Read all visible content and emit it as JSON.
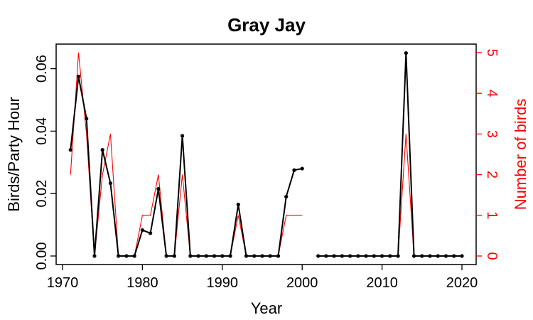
{
  "chart_data": {
    "type": "line",
    "title": "Gray Jay",
    "xlabel": "Year",
    "ylabel": "Birds/Party Hour",
    "y2label": "Number of birds",
    "xlim": [
      1970,
      2020
    ],
    "ylim": [
      0,
      0.065
    ],
    "y2lim": [
      0,
      5
    ],
    "x_ticks": [
      1970,
      1980,
      1990,
      2000,
      2010,
      2020
    ],
    "y_ticks": [
      "0.00",
      "0.02",
      "0.04",
      "0.06"
    ],
    "y2_ticks": [
      "0",
      "1",
      "2",
      "3",
      "4",
      "5"
    ],
    "colors": {
      "primary": "#000000",
      "secondary": "#ff0000"
    },
    "x": [
      1971,
      1972,
      1973,
      1974,
      1975,
      1976,
      1977,
      1978,
      1979,
      1980,
      1981,
      1982,
      1983,
      1984,
      1985,
      1986,
      1987,
      1988,
      1989,
      1990,
      1991,
      1992,
      1993,
      1994,
      1995,
      1996,
      1997,
      1998,
      1999,
      2000,
      2001,
      2002,
      2003,
      2004,
      2005,
      2006,
      2007,
      2008,
      2009,
      2010,
      2011,
      2012,
      2013,
      2014,
      2015,
      2016,
      2017,
      2018,
      2019,
      2020
    ],
    "series": [
      {
        "axis": "left",
        "values": [
          0.034,
          0.0575,
          0.044,
          0,
          0.034,
          0.0233,
          0,
          0,
          0,
          0.0083,
          0.0073,
          0.0215,
          0,
          0,
          0.0385,
          0,
          0,
          0,
          0,
          0,
          0,
          0.0165,
          0,
          0,
          0,
          0,
          0,
          0.019,
          0.0275,
          0.028,
          null,
          0,
          0,
          0,
          0,
          0,
          0,
          0,
          0,
          0,
          0,
          0,
          0.065,
          0,
          0,
          0,
          0,
          0,
          0,
          0
        ]
      },
      {
        "axis": "right",
        "values": [
          2,
          5,
          3,
          0,
          2,
          3,
          0,
          0,
          0,
          1,
          1,
          2,
          0,
          0,
          2,
          0,
          0,
          0,
          0,
          0,
          0,
          1,
          0,
          0,
          0,
          0,
          0,
          1,
          1,
          1,
          null,
          0,
          0,
          0,
          0,
          0,
          0,
          0,
          0,
          0,
          0,
          0,
          3,
          0,
          0,
          0,
          0,
          0,
          0,
          0
        ]
      }
    ]
  }
}
